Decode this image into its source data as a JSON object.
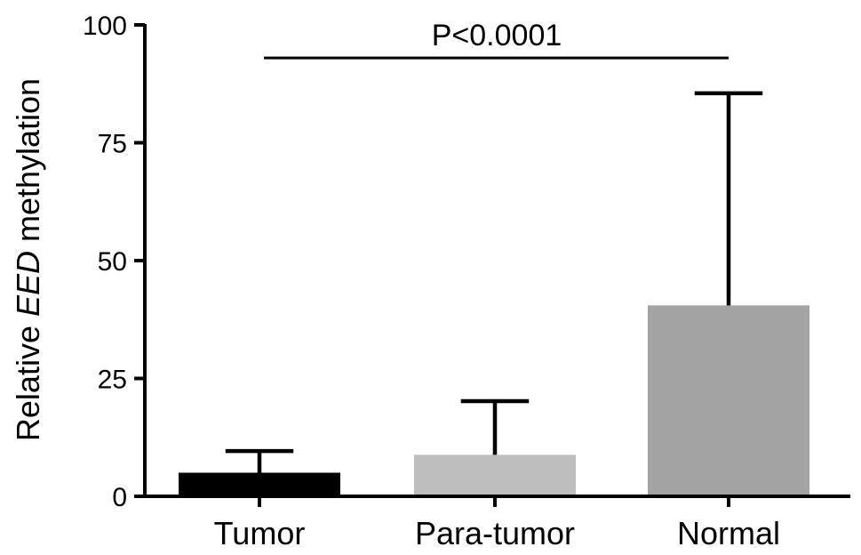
{
  "chart_data": {
    "type": "bar",
    "ylabel": {
      "prefix": "Relative ",
      "emphasis": "EED",
      "suffix": " methylation"
    },
    "ylim": [
      0,
      100
    ],
    "yticks": [
      0,
      25,
      50,
      75,
      100
    ],
    "categories": [
      "Tumor",
      "Para-tumor",
      "Normal"
    ],
    "values": [
      5,
      8.8,
      40.5
    ],
    "error_upper": [
      9.6,
      20.2,
      85.5
    ],
    "colors": [
      "#000000",
      "#bebebe",
      "#a3a3a3"
    ],
    "grid": false,
    "annotation": {
      "text": "P<0.0001",
      "from_category": "Tumor",
      "to_category": "Normal",
      "y": 93
    }
  }
}
